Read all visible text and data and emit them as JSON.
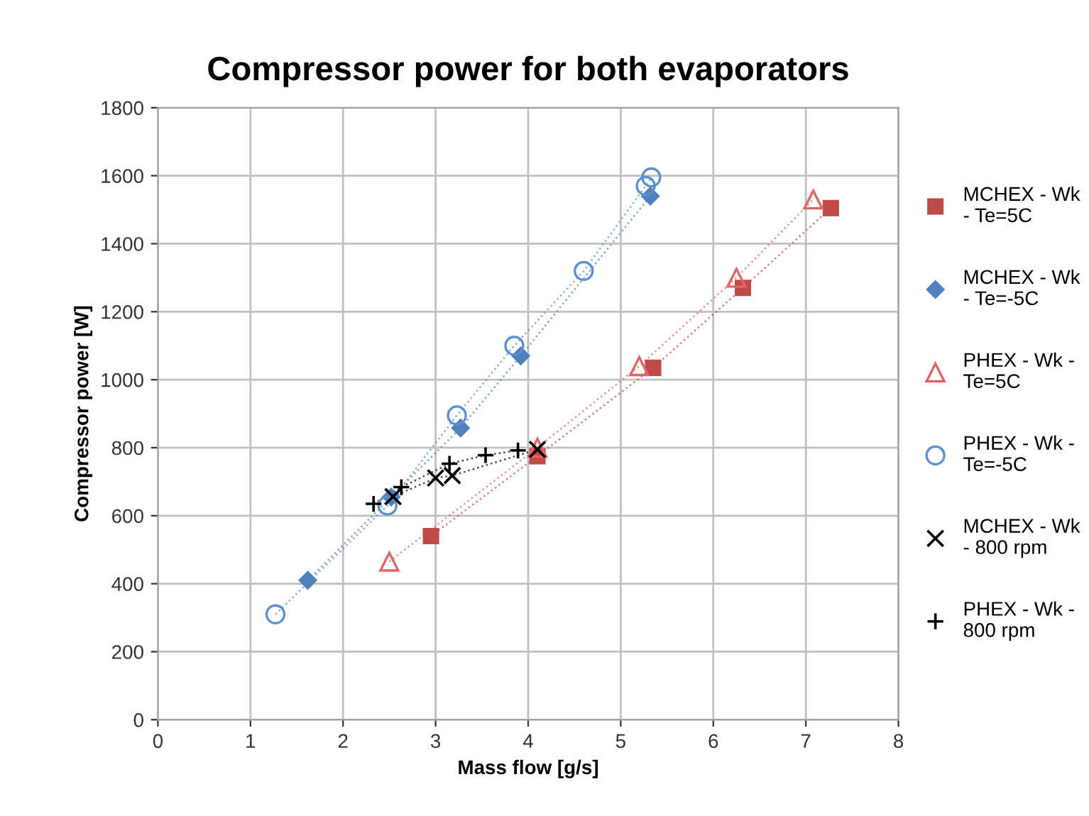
{
  "chart_data": {
    "type": "line",
    "title": "Compressor power for both evaporators",
    "xlabel": "Mass flow [g/s]",
    "ylabel": "Compressor power [W]",
    "xlim": [
      0,
      8
    ],
    "xticks": [
      0,
      1,
      2,
      3,
      4,
      5,
      6,
      7,
      8
    ],
    "ylim": [
      0,
      1800
    ],
    "yticks": [
      0,
      200,
      400,
      600,
      800,
      1000,
      1200,
      1400,
      1600,
      1800
    ],
    "grid": true,
    "legend": "right",
    "line_style": "dotted",
    "series": [
      {
        "name": "MCHEX - Wk - Te=5C",
        "color": "#be4b48",
        "marker": "square",
        "x": [
          2.95,
          4.1,
          5.35,
          6.32,
          7.27
        ],
        "values": [
          540,
          775,
          1035,
          1270,
          1505
        ]
      },
      {
        "name": "MCHEX - Wk - Te=-5C",
        "color": "#4f81bd",
        "marker": "diamond",
        "x": [
          1.62,
          2.52,
          3.27,
          3.92,
          5.32
        ],
        "values": [
          410,
          655,
          858,
          1070,
          1540
        ]
      },
      {
        "name": "PHEX - Wk - Te=5C",
        "color": "#e06666",
        "marker": "triangle",
        "x": [
          2.5,
          4.1,
          5.2,
          6.25,
          7.08
        ],
        "values": [
          465,
          800,
          1040,
          1300,
          1530
        ]
      },
      {
        "name": "PHEX - Wk - Te=-5C",
        "color": "#5b8fd0",
        "marker": "circle",
        "x": [
          1.27,
          2.48,
          3.23,
          3.85,
          4.6,
          5.27,
          5.33
        ],
        "values": [
          310,
          630,
          895,
          1100,
          1320,
          1570,
          1595
        ]
      },
      {
        "name": "MCHEX - Wk - 800 rpm",
        "color": "#000000",
        "marker": "cross",
        "x": [
          2.54,
          3.0,
          3.18,
          4.1
        ],
        "values": [
          656,
          711,
          718,
          795
        ]
      },
      {
        "name": "PHEX - Wk - 800 rpm",
        "color": "#000000",
        "marker": "plus",
        "x": [
          2.33,
          2.63,
          3.15,
          3.54,
          3.89
        ],
        "values": [
          635,
          684,
          753,
          778,
          792
        ]
      }
    ]
  }
}
